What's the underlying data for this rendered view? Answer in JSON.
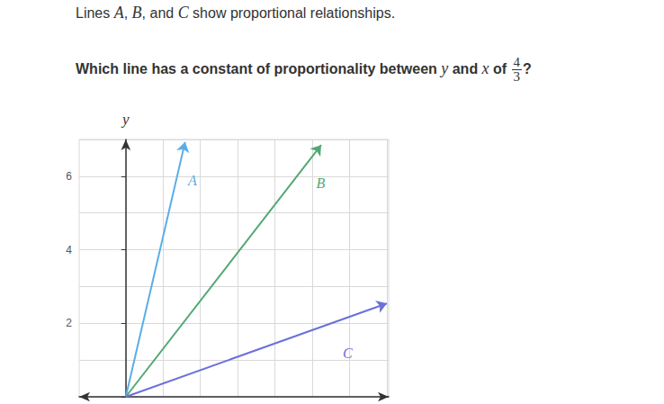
{
  "intro": [
    {
      "text": "Lines "
    },
    {
      "var": "A"
    },
    {
      "text": ", "
    },
    {
      "var": "B"
    },
    {
      "text": ", and "
    },
    {
      "var": "C"
    },
    {
      "text": " show proportional relationships."
    }
  ],
  "question": [
    {
      "text": "Which line has a constant of proportionality between "
    },
    {
      "var": "y"
    },
    {
      "text": " and "
    },
    {
      "var": "x"
    },
    {
      "text": " of "
    },
    {
      "frac": [
        4,
        3
      ]
    },
    {
      "text": "?"
    }
  ],
  "chart_data": {
    "type": "line",
    "y_label": "y",
    "series": [
      {
        "name": "A",
        "color": "#5aaee6",
        "x": [
          0,
          1.59
        ],
        "values": [
          0,
          6.93
        ]
      },
      {
        "name": "B",
        "color": "#52a874",
        "x": [
          0,
          5.24
        ],
        "values": [
          0,
          6.85
        ]
      },
      {
        "name": "C",
        "color": "#6a70d8",
        "x": [
          0,
          7.0
        ],
        "values": [
          0,
          2.54
        ]
      }
    ],
    "xlim": [
      -1.25,
      7.05
    ],
    "xticks": [
      0,
      1,
      2,
      3,
      4,
      5,
      6,
      7
    ],
    "ylim": [
      0,
      7
    ],
    "yticks": [
      2,
      4,
      6
    ],
    "grid": true,
    "tick_labels": "y"
  }
}
